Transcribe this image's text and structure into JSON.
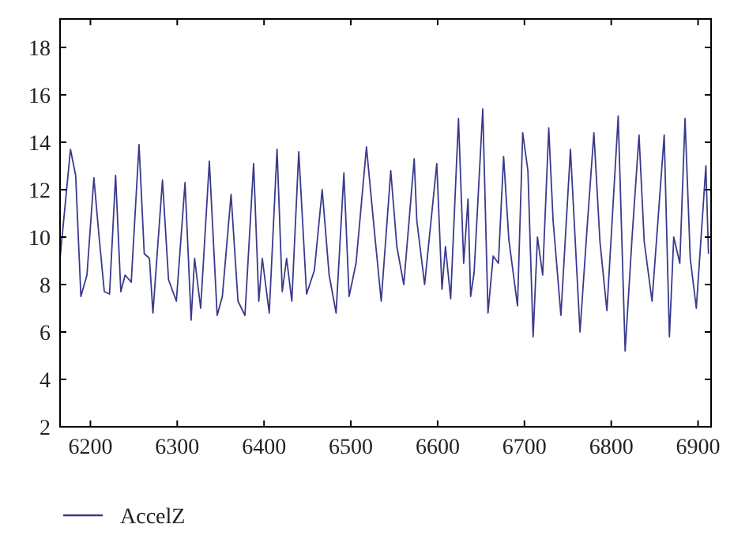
{
  "chart_data": {
    "type": "line",
    "xlim": [
      6165,
      6915
    ],
    "xticks": [
      6200,
      6300,
      6400,
      6500,
      6600,
      6700,
      6800,
      6900
    ],
    "ylim": [
      2,
      19.2
    ],
    "yticks": [
      2,
      4,
      6,
      8,
      10,
      12,
      14,
      16,
      18
    ],
    "grid": false,
    "legend": "bottom left",
    "line_style": "solid",
    "marker": "none",
    "x": [
      6165,
      6177,
      6183,
      6189,
      6196,
      6204,
      6210,
      6216,
      6222,
      6229,
      6235,
      6240,
      6247,
      6256,
      6262,
      6268,
      6272,
      6283,
      6290,
      6299,
      6309,
      6316,
      6320,
      6327,
      6337,
      6346,
      6352,
      6362,
      6370,
      6378,
      6388,
      6394,
      6398,
      6406,
      6415,
      6421,
      6426,
      6432,
      6440,
      6449,
      6458,
      6467,
      6475,
      6483,
      6492,
      6498,
      6506,
      6518,
      6527,
      6535,
      6546,
      6553,
      6561,
      6573,
      6576,
      6585,
      6599,
      6605,
      6609,
      6615,
      6624,
      6630,
      6635,
      6638,
      6642,
      6652,
      6658,
      6664,
      6670,
      6676,
      6682,
      6692,
      6698,
      6704,
      6710,
      6715,
      6721,
      6728,
      6733,
      6742,
      6753,
      6764,
      6772,
      6780,
      6787,
      6795,
      6808,
      6816,
      6824,
      6832,
      6838,
      6847,
      6861,
      6867,
      6872,
      6879,
      6885,
      6891,
      6898,
      6909,
      6912
    ],
    "series": [
      {
        "name": "AccelZ",
        "color": "#3a3a8c",
        "values": [
          9.1,
          13.7,
          12.6,
          7.5,
          8.4,
          12.5,
          10.0,
          7.7,
          7.6,
          12.6,
          7.7,
          8.4,
          8.1,
          13.9,
          9.3,
          9.1,
          6.8,
          12.4,
          8.2,
          7.3,
          12.3,
          6.5,
          9.1,
          7.0,
          13.2,
          6.7,
          7.5,
          11.8,
          7.3,
          6.7,
          13.1,
          7.3,
          9.1,
          6.8,
          13.7,
          7.7,
          9.1,
          7.3,
          13.6,
          7.6,
          8.6,
          12.0,
          8.4,
          6.8,
          12.7,
          7.5,
          8.9,
          13.8,
          10.3,
          7.3,
          12.8,
          9.6,
          8.0,
          13.3,
          10.7,
          8.0,
          13.1,
          7.8,
          9.6,
          7.4,
          15.0,
          8.9,
          11.6,
          7.5,
          8.5,
          15.4,
          6.8,
          9.2,
          8.9,
          13.4,
          9.9,
          7.1,
          14.4,
          12.8,
          5.8,
          10.0,
          8.4,
          14.6,
          10.7,
          6.7,
          13.7,
          6.0,
          10.3,
          14.4,
          9.8,
          6.9,
          15.1,
          5.2,
          10.0,
          14.3,
          9.8,
          7.3,
          14.3,
          5.8,
          10.0,
          8.9,
          15.0,
          9.1,
          7.0,
          13.0,
          9.3
        ]
      }
    ]
  }
}
